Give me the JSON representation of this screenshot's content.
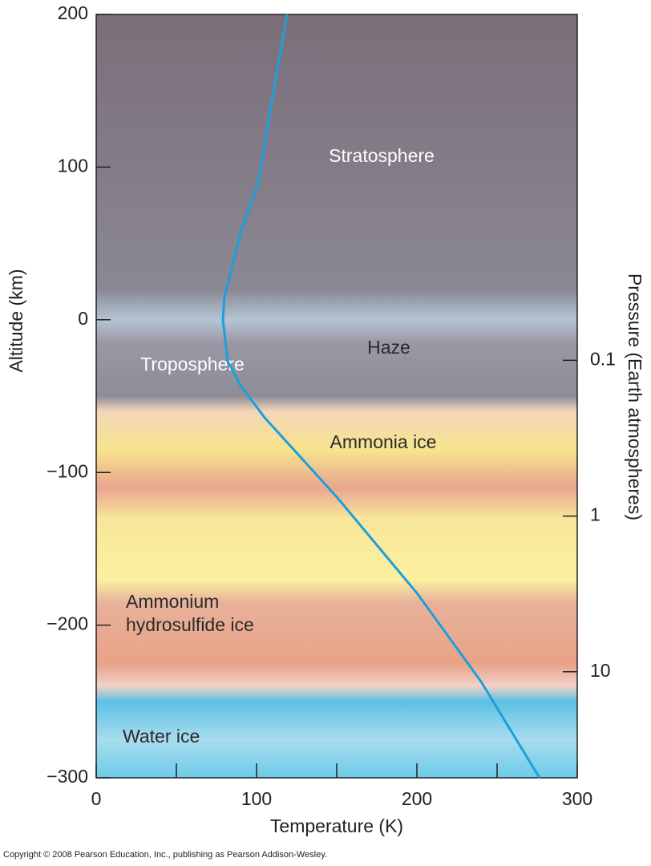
{
  "chart_data": {
    "type": "line",
    "x": [
      119,
      110,
      101,
      90,
      80,
      79,
      82,
      90,
      105,
      150,
      200,
      240,
      276.5
    ],
    "values": [
      200,
      146,
      89,
      57,
      15,
      0,
      -27,
      -43,
      -64,
      -116,
      -179,
      -237,
      -300
    ],
    "color": "#1aa0dc",
    "xlim": [
      0,
      300
    ],
    "xticks": [
      0,
      100,
      200,
      300
    ],
    "xminorticks": [
      50,
      150,
      250
    ],
    "ylim": [
      -300,
      200
    ],
    "yticks": [
      200,
      100,
      0,
      {
        "value": -100,
        "label": "−100"
      },
      {
        "value": -200,
        "label": "−200"
      },
      {
        "value": -300,
        "label": "−300"
      }
    ],
    "y2lim": [
      0.0006,
      48
    ],
    "y2log": true,
    "y2ticks": [
      0.1,
      1,
      10
    ],
    "xlabel": "Temperature (K)",
    "ylabel": "Altitude (km)",
    "y2label": "Pressure (Earth atmospheres)",
    "annotations": [
      "Stratosphere",
      "Haze",
      "Troposphere",
      "Ammonia ice",
      "Ammonium",
      "hydrosulfide ice",
      "Water ice"
    ],
    "grid": false
  },
  "copyright": "Copyright © 2008 Pearson Education, Inc., publishing as Pearson Addison-Wesley."
}
